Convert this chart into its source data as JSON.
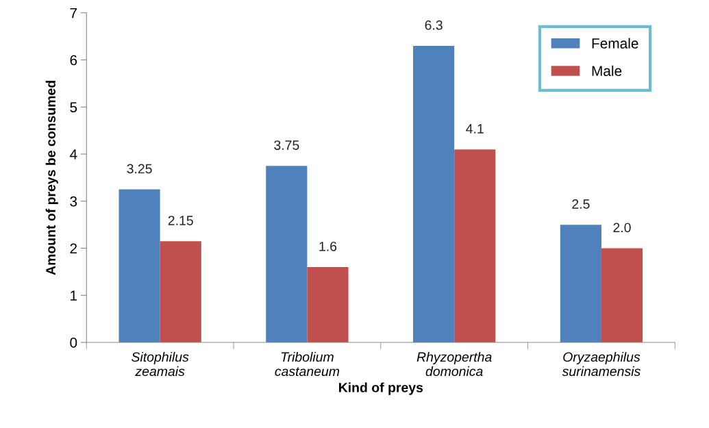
{
  "chart_data": {
    "type": "bar",
    "xlabel": "Kind of preys",
    "ylabel": "Amount of preys be consumed",
    "categories": [
      "Sitophilus\nzeamais",
      "Tribolium\ncastaneum",
      "Rhyzopertha\ndomonica",
      "Oryzaephilus\nsurinamensis"
    ],
    "series": [
      {
        "name": "Female",
        "color": "#4f81bd",
        "values": [
          3.25,
          3.75,
          6.3,
          2.5
        ],
        "value_labels": [
          "3.25",
          "3.75",
          "6.3",
          "2.5"
        ]
      },
      {
        "name": "Male",
        "color": "#c0504d",
        "values": [
          2.15,
          1.6,
          4.1,
          2.0
        ],
        "value_labels": [
          "2.15",
          "1.6",
          "4.1",
          "2.0"
        ]
      }
    ],
    "ylim": [
      0,
      7
    ],
    "yticks": [
      0,
      1,
      2,
      3,
      4,
      5,
      6,
      7
    ],
    "grid": false,
    "legend": "top right"
  }
}
